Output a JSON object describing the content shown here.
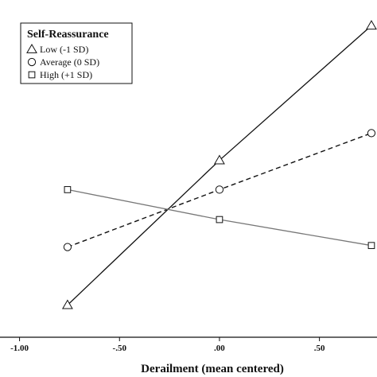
{
  "chart_data": {
    "type": "line",
    "title": "",
    "xlabel": "Derailment (mean centered)",
    "ylabel": "",
    "xlim": [
      -1.05,
      0.78
    ],
    "ylim": [
      0,
      1
    ],
    "x_ticks": [
      -1.0,
      -0.5,
      0.0,
      0.5
    ],
    "x_tick_labels": [
      "-1.00",
      "-.50",
      ".00",
      ".50"
    ],
    "x": [
      -0.76,
      0.0,
      0.76
    ],
    "grid": false,
    "legend": {
      "title": "Self-Reassurance",
      "position": "top-left"
    },
    "series": [
      {
        "name": "Low (-1 SD)",
        "marker": "triangle",
        "line_style": "solid",
        "line_color": "#111111",
        "values": [
          0.048,
          0.522,
          0.963
        ]
      },
      {
        "name": "Average (0 SD)",
        "marker": "circle",
        "line_style": "dashed",
        "line_color": "#111111",
        "values": [
          0.238,
          0.426,
          0.611
        ]
      },
      {
        "name": "High (+1 SD)",
        "marker": "square",
        "line_style": "solid",
        "line_color": "#777777",
        "values": [
          0.426,
          0.328,
          0.243
        ]
      }
    ]
  }
}
